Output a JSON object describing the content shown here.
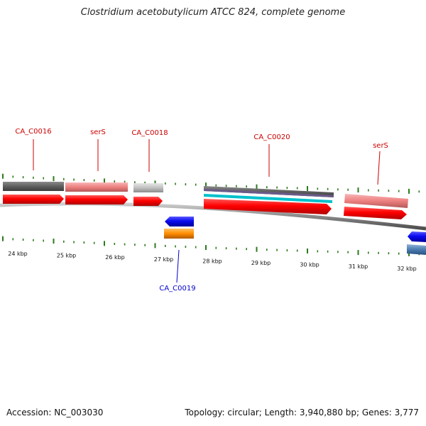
{
  "title": "Clostridium acetobutylicum ATCC 824, complete genome",
  "footer": {
    "accession": "Accession: NC_003030",
    "summary": "Topology: circular; Length: 3,940,880 bp; Genes: 3,777"
  },
  "colors": {
    "forward_label": "#cc0000",
    "reverse_label": "#0000cc",
    "tick": "#2d7a1d",
    "backbone": "#8a8a8a",
    "cds": "#ff0000",
    "reverse_cds": "#1010ee",
    "orange_feature": "#ff8c00",
    "rna_teal": "#00b8c8"
  },
  "scale_labels": [
    "24 kbp",
    "25 kbp",
    "26 kbp",
    "27 kbp",
    "28 kbp",
    "29 kbp",
    "30 kbp",
    "31 kbp",
    "32 kbp"
  ],
  "gene_labels": {
    "ca_c0016": "CA_C0016",
    "sers_1": "serS",
    "ca_c0018": "CA_C0018",
    "ca_c0020": "CA_C0020",
    "sers_2": "serS",
    "ca_c0019": "CA_C0019"
  }
}
